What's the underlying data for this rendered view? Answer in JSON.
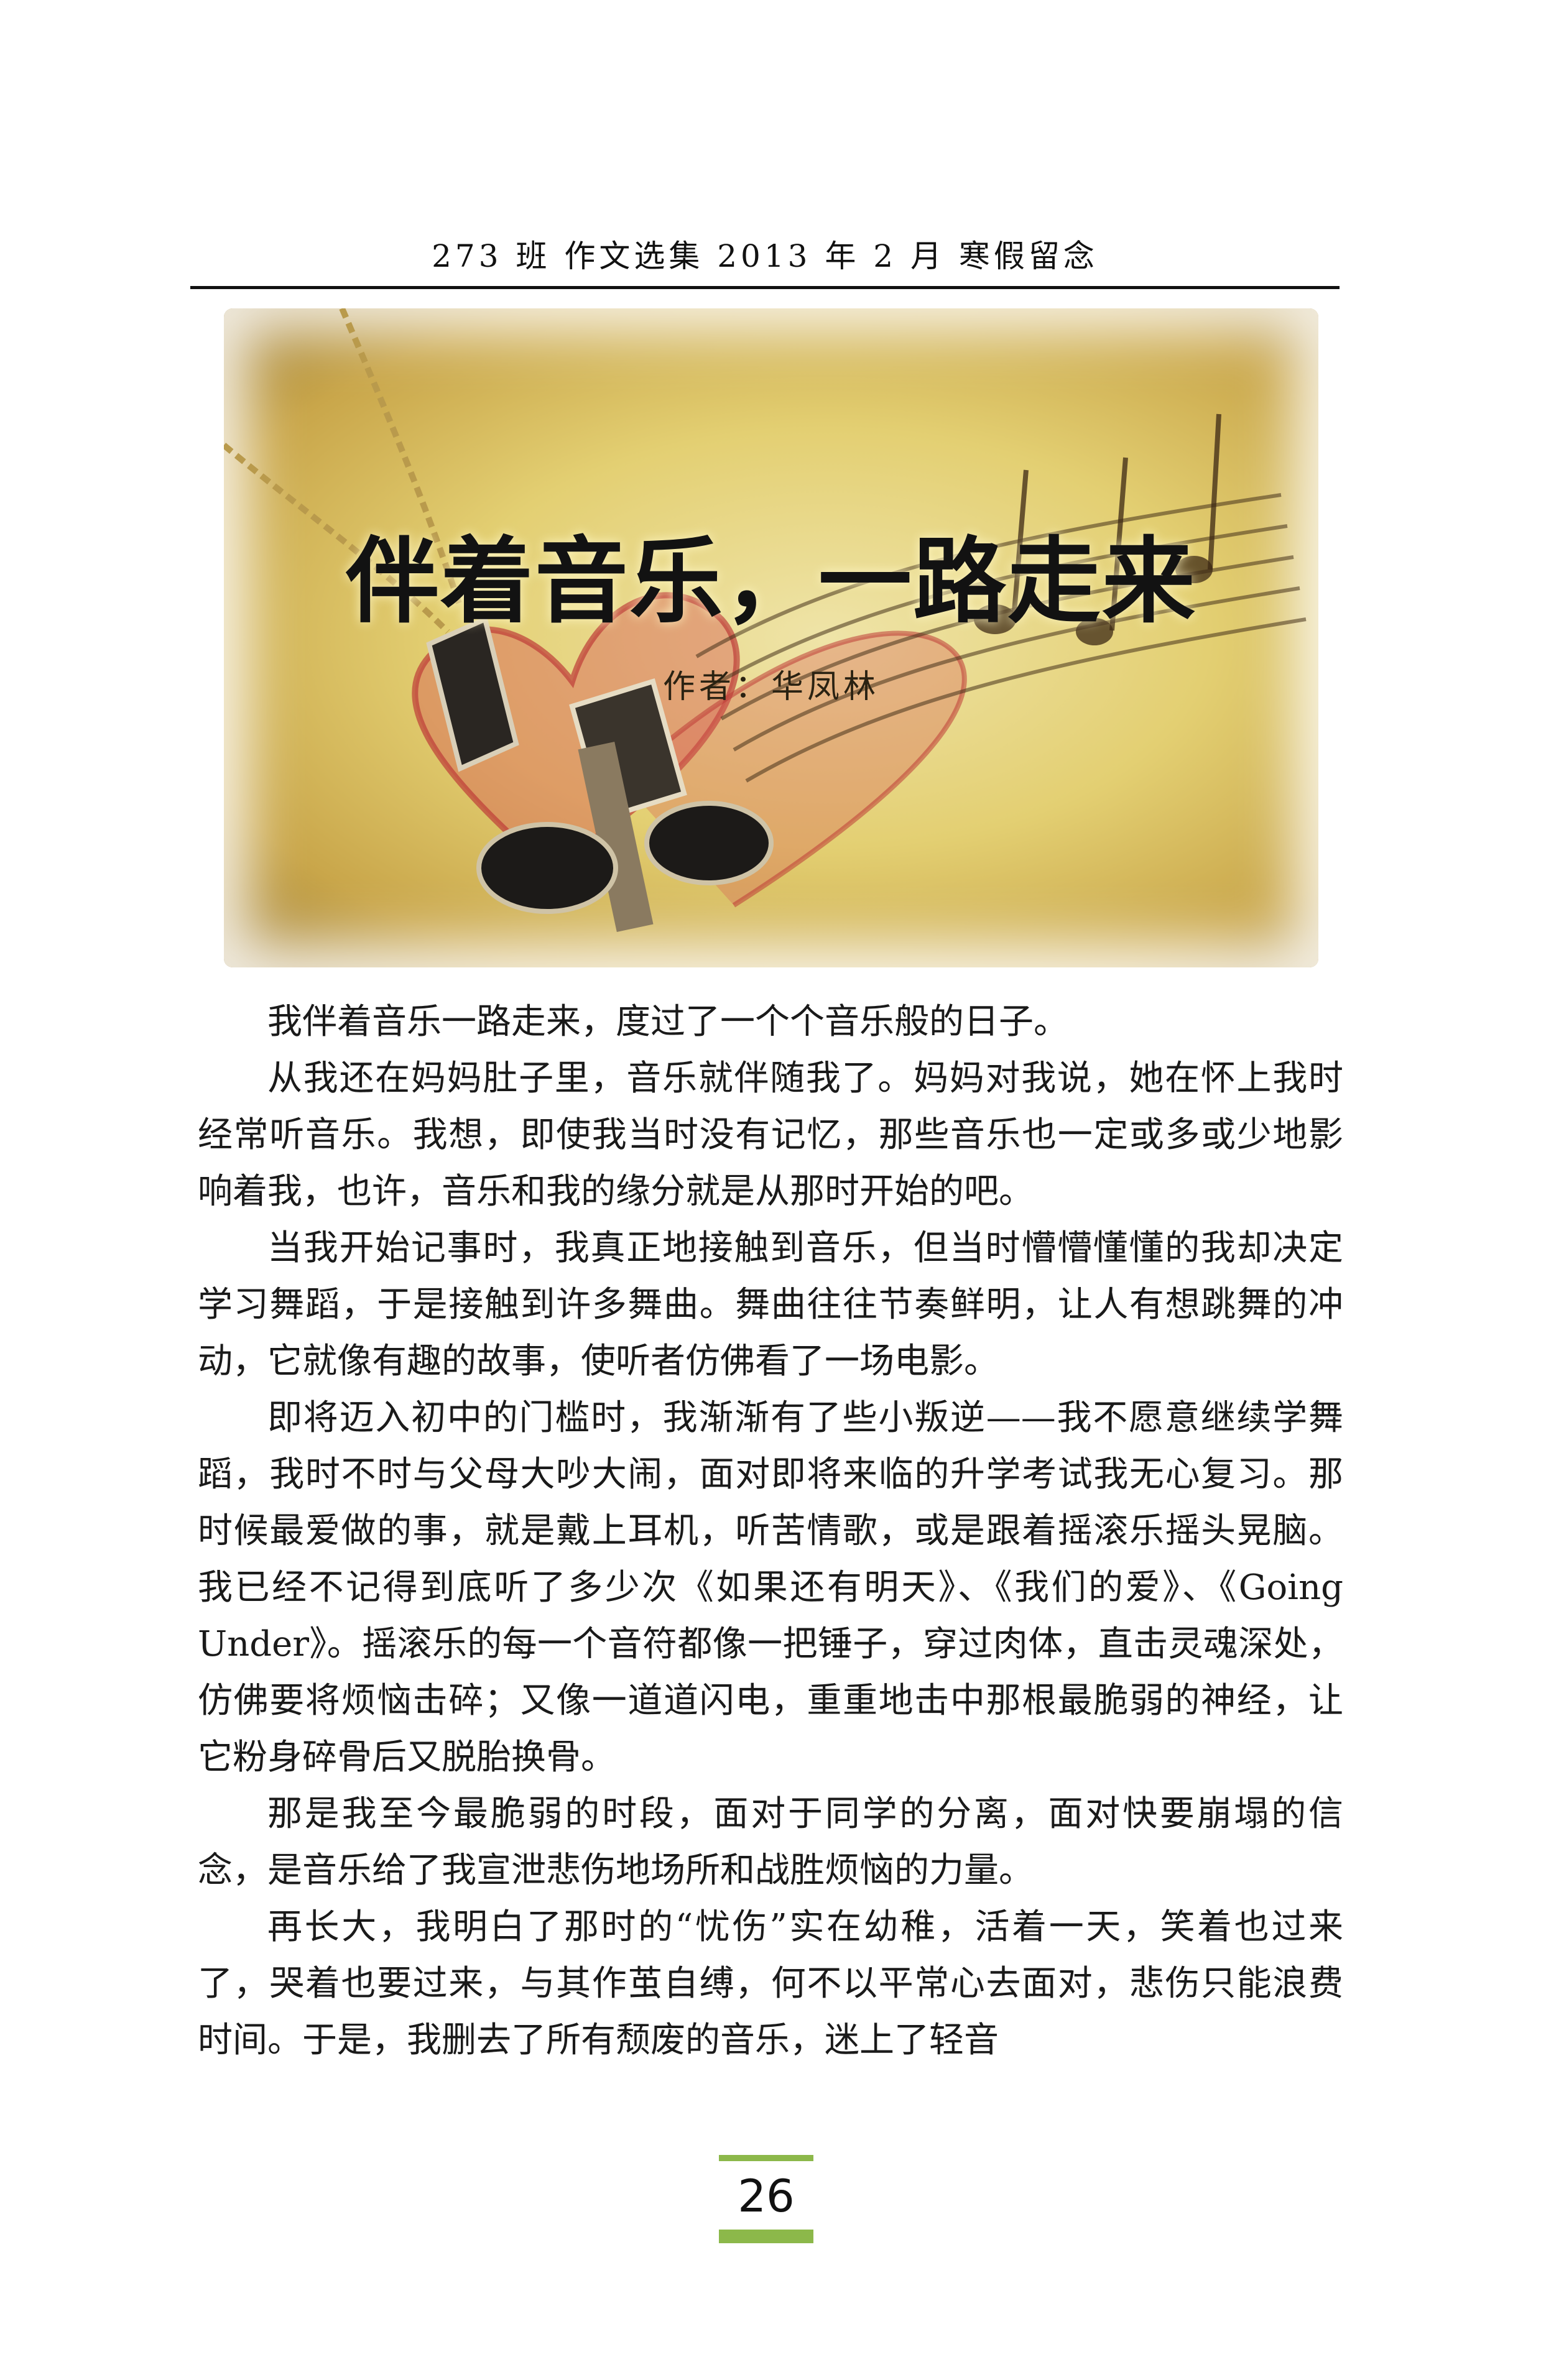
{
  "header": {
    "text": "273 班 作文选集 2013 年 2 月 寒假留念"
  },
  "article": {
    "title": "伴着音乐，一路走来",
    "byline": "作者：华凤林",
    "paragraphs": [
      "我伴着音乐一路走来，度过了一个个音乐般的日子。",
      "从我还在妈妈肚子里，音乐就伴随我了。妈妈对我说，她在怀上我时经常听音乐。我想，即使我当时没有记忆，那些音乐也一定或多或少地影响着我，也许，音乐和我的缘分就是从那时开始的吧。",
      "当我开始记事时，我真正地接触到音乐，但当时懵懵懂懂的我却决定学习舞蹈，于是接触到许多舞曲。舞曲往往节奏鲜明，让人有想跳舞的冲动，它就像有趣的故事，使听者仿佛看了一场电影。",
      "即将迈入初中的门槛时，我渐渐有了些小叛逆——我不愿意继续学舞蹈，我时不时与父母大吵大闹，面对即将来临的升学考试我无心复习。那时候最爱做的事，就是戴上耳机，听苦情歌，或是跟着摇滚乐摇头晃脑。我已经不记得到底听了多少次《如果还有明天》、《我们的爱》、《Going Under》。摇滚乐的每一个音符都像一把锤子，穿过肉体，直击灵魂深处，仿佛要将烦恼击碎；又像一道道闪电，重重地击中那根最脆弱的神经，让它粉身碎骨后又脱胎换骨。",
      "那是我至今最脆弱的时段，面对于同学的分离，面对快要崩塌的信念，是音乐给了我宣泄悲伤地场所和战胜烦恼的力量。",
      "再长大，我明白了那时的“忧伤”实在幼稚，活着一天，笑着也过来了，哭着也要过来，与其作茧自缚，何不以平常心去面对，悲伤只能浪费时间。于是，我删去了所有颓废的音乐，迷上了轻音"
    ]
  },
  "footer": {
    "page_number": "26",
    "accent_color": "#8cb84a"
  }
}
